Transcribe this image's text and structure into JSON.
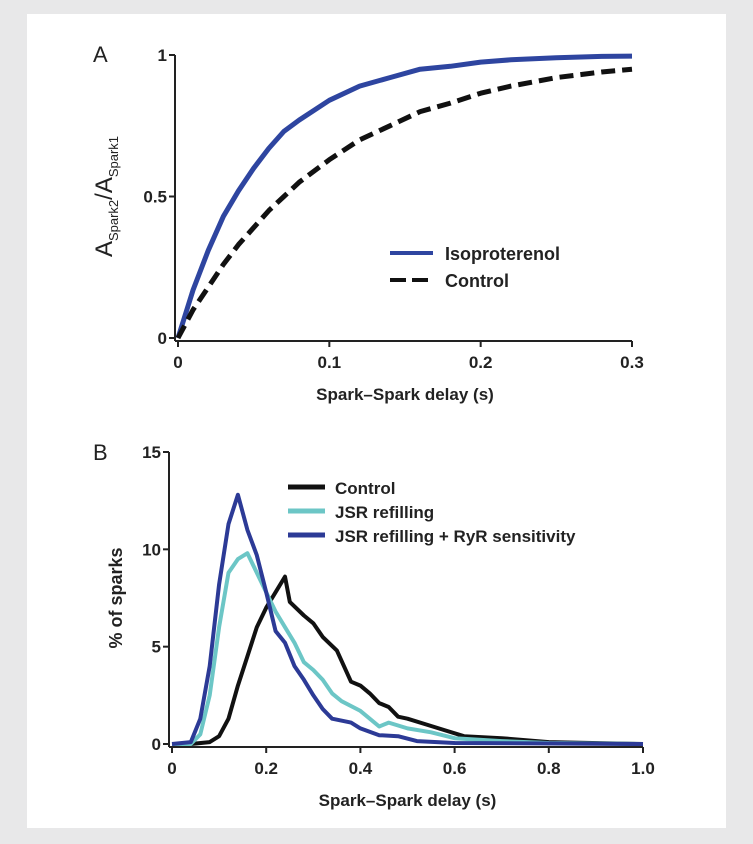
{
  "chart_data": [
    {
      "panel_label": "A",
      "type": "line",
      "xlabel": "Spark–Spark delay (s)",
      "ylabel_main": "A",
      "ylabel_sub1": "Spark2",
      "ylabel_sep": "/A",
      "ylabel_sub2": "Spark1",
      "xlim": [
        0,
        0.3
      ],
      "ylim": [
        0,
        1
      ],
      "xticks": [
        "0",
        "0.1",
        "0.2",
        "0.3"
      ],
      "xtick_values": [
        0,
        0.1,
        0.2,
        0.3
      ],
      "yticks": [
        "0",
        "0.5",
        "1"
      ],
      "ytick_values": [
        0,
        0.5,
        1
      ],
      "grid": false,
      "legend_position": "lower-right",
      "series": [
        {
          "name": "Isoproterenol",
          "color": "#2e45a0",
          "style": "solid",
          "x": [
            0,
            0.01,
            0.02,
            0.03,
            0.04,
            0.05,
            0.06,
            0.07,
            0.08,
            0.1,
            0.12,
            0.14,
            0.16,
            0.18,
            0.2,
            0.22,
            0.25,
            0.28,
            0.3
          ],
          "y": [
            0,
            0.17,
            0.31,
            0.43,
            0.52,
            0.6,
            0.67,
            0.73,
            0.77,
            0.84,
            0.89,
            0.92,
            0.95,
            0.96,
            0.975,
            0.983,
            0.99,
            0.995,
            0.996
          ]
        },
        {
          "name": "Control",
          "color": "#111111",
          "style": "dashed",
          "x": [
            0,
            0.01,
            0.02,
            0.03,
            0.04,
            0.05,
            0.06,
            0.07,
            0.08,
            0.1,
            0.12,
            0.14,
            0.16,
            0.18,
            0.2,
            0.22,
            0.25,
            0.28,
            0.3
          ],
          "y": [
            0,
            0.1,
            0.18,
            0.26,
            0.33,
            0.39,
            0.45,
            0.5,
            0.55,
            0.63,
            0.7,
            0.75,
            0.8,
            0.83,
            0.865,
            0.89,
            0.92,
            0.94,
            0.95
          ]
        }
      ]
    },
    {
      "panel_label": "B",
      "type": "line",
      "xlabel": "Spark–Spark delay (s)",
      "ylabel": "% of sparks",
      "xlim": [
        0,
        1.0
      ],
      "ylim": [
        0,
        15
      ],
      "xticks": [
        "0",
        "0.2",
        "0.4",
        "0.6",
        "0.8",
        "1.0"
      ],
      "xtick_values": [
        0,
        0.2,
        0.4,
        0.6,
        0.8,
        1.0
      ],
      "yticks": [
        "0",
        "5",
        "10",
        "15"
      ],
      "ytick_values": [
        0,
        5,
        10,
        15
      ],
      "grid": false,
      "legend_position": "top-right",
      "series": [
        {
          "name": "Control",
          "color": "#111111",
          "x": [
            0,
            0.04,
            0.08,
            0.1,
            0.12,
            0.14,
            0.16,
            0.18,
            0.2,
            0.22,
            0.24,
            0.25,
            0.28,
            0.3,
            0.32,
            0.35,
            0.38,
            0.4,
            0.42,
            0.44,
            0.46,
            0.48,
            0.5,
            0.54,
            0.58,
            0.62,
            0.7,
            0.8,
            1.0
          ],
          "y": [
            0,
            0,
            0.1,
            0.4,
            1.3,
            3,
            4.5,
            6,
            7,
            7.8,
            8.6,
            7.3,
            6.6,
            6.2,
            5.5,
            4.8,
            3.2,
            3.0,
            2.6,
            2.1,
            1.9,
            1.4,
            1.3,
            1.0,
            0.7,
            0.4,
            0.3,
            0.1,
            0
          ]
        },
        {
          "name": "JSR refilling",
          "color": "#6cc6c6",
          "x": [
            0,
            0.04,
            0.06,
            0.08,
            0.1,
            0.12,
            0.14,
            0.16,
            0.18,
            0.2,
            0.22,
            0.24,
            0.26,
            0.28,
            0.3,
            0.32,
            0.34,
            0.36,
            0.4,
            0.44,
            0.46,
            0.5,
            0.55,
            0.6,
            0.7,
            0.8,
            1.0
          ],
          "y": [
            0,
            0,
            0.5,
            2.5,
            6,
            8.8,
            9.5,
            9.8,
            8.8,
            7.8,
            6.8,
            6,
            5.2,
            4.2,
            3.8,
            3.3,
            2.6,
            2.2,
            1.7,
            0.9,
            1.1,
            0.8,
            0.6,
            0.3,
            0.15,
            0.05,
            0
          ]
        },
        {
          "name": "JSR refilling + RyR sensitivity",
          "color": "#2c3a96",
          "x": [
            0,
            0.04,
            0.06,
            0.08,
            0.1,
            0.12,
            0.14,
            0.16,
            0.18,
            0.2,
            0.22,
            0.24,
            0.26,
            0.28,
            0.3,
            0.32,
            0.34,
            0.38,
            0.4,
            0.44,
            0.48,
            0.52,
            0.6,
            1.0
          ],
          "y": [
            0,
            0.1,
            1.3,
            4,
            8.2,
            11.3,
            12.8,
            11,
            9.7,
            7.8,
            5.8,
            5.2,
            4,
            3.3,
            2.5,
            1.8,
            1.3,
            1.1,
            0.8,
            0.45,
            0.4,
            0.15,
            0.05,
            0
          ]
        }
      ]
    }
  ]
}
